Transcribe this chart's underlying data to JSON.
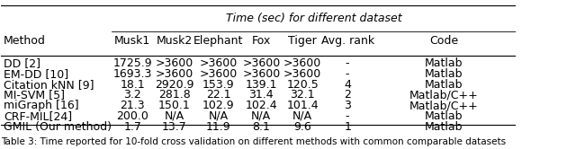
{
  "title": "Time (sec) for different dataset",
  "col_headers": [
    "Method",
    "Musk1",
    "Musk2",
    "Elephant",
    "Fox",
    "Tiger",
    "Avg. rank",
    "Code"
  ],
  "rows": [
    [
      "DD [2]",
      "1725.9",
      ">3600",
      ">3600",
      ">3600",
      ">3600",
      "-",
      "Matlab"
    ],
    [
      "EM-DD [10]",
      "1693.3",
      ">3600",
      ">3600",
      ">3600",
      ">3600",
      "-",
      "Matlab"
    ],
    [
      "Citation kNN [9]",
      "18.1",
      "2920.9",
      "153.9",
      "139.1",
      "120.5",
      "4",
      "Matlab"
    ],
    [
      "MI-SVM [5]",
      "3.2",
      "281.8",
      "22.1",
      "31.4",
      "32.1",
      "2",
      "Matlab/C++"
    ],
    [
      "miGraph [16]",
      "21.3",
      "150.1",
      "102.9",
      "102.4",
      "101.4",
      "3",
      "Matlab/C++"
    ],
    [
      "CRF-MIL[24]",
      "200.0",
      "N/A",
      "N/A",
      "N/A",
      "N/A",
      "-",
      "Matlab"
    ],
    [
      "GMIL (Our method)",
      "1.7",
      "13.7",
      "11.9",
      "8.1",
      "9.6",
      "1",
      "Matlab"
    ]
  ],
  "caption": "Table 3: Time reported for 10-fold cross validation on different methods with common comparable datasets",
  "background_color": "#ffffff",
  "header_line_color": "#000000",
  "text_color": "#000000",
  "fontsize": 9,
  "caption_fontsize": 7.5
}
